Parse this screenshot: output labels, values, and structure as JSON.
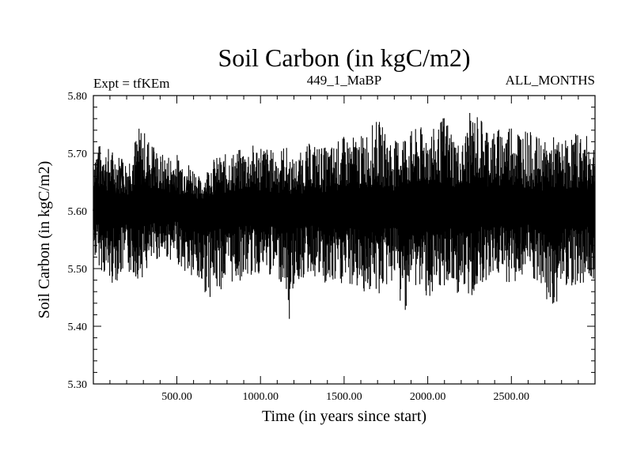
{
  "chart_data": {
    "type": "line",
    "title": "Soil Carbon (in kgC/m2)",
    "subtitle_left": "Expt = tfKEm",
    "subtitle_center": "449_1_MaBP",
    "subtitle_right": "ALL_MONTHS",
    "xlabel": "Time (in years since start)",
    "ylabel": "Soil Carbon (in kgC/m2)",
    "xlim": [
      1,
      3000
    ],
    "ylim": [
      5.3,
      5.8
    ],
    "x_ticks": [
      500,
      1000,
      1500,
      2000,
      2500
    ],
    "x_tick_labels": [
      "500.00",
      "1000.00",
      "1500.00",
      "2000.00",
      "2500.00"
    ],
    "y_ticks": [
      5.3,
      5.4,
      5.5,
      5.6,
      5.7,
      5.8
    ],
    "y_tick_labels": [
      "5.30",
      "5.40",
      "5.50",
      "5.60",
      "5.70",
      "5.80"
    ],
    "grid": false,
    "series": [
      {
        "color": "#000000",
        "x_step": 10,
        "x_start": 1,
        "values": [
          5.6,
          5.65,
          5.58,
          5.7,
          5.55,
          5.62,
          5.68,
          5.57,
          5.63,
          5.6,
          5.54,
          5.66,
          5.61,
          5.59,
          5.64,
          5.56,
          5.62,
          5.69,
          5.58,
          5.61,
          5.63,
          5.57,
          5.66,
          5.6,
          5.55,
          5.64,
          5.59,
          5.62,
          5.68,
          5.56,
          5.61,
          5.65,
          5.53,
          5.6,
          5.63,
          5.58,
          5.71,
          5.59,
          5.62,
          5.56,
          5.64,
          5.6,
          5.57,
          5.66,
          5.61,
          5.58,
          5.63,
          5.55,
          5.6,
          5.65,
          5.59,
          5.62,
          5.57,
          5.64,
          5.52,
          5.6,
          5.66,
          5.58,
          5.62,
          5.6,
          5.57,
          5.63,
          5.59,
          5.61,
          5.55,
          5.62,
          5.58,
          5.64,
          5.6,
          5.56,
          5.63,
          5.59,
          5.61,
          5.57,
          5.65,
          5.6,
          5.62,
          5.58,
          5.64,
          5.61,
          5.59,
          5.63,
          5.57,
          5.66,
          5.6,
          5.62,
          5.58,
          5.64,
          5.61,
          5.59,
          5.65,
          5.6,
          5.62,
          5.57,
          5.63,
          5.61,
          5.59,
          5.64,
          5.6,
          5.62,
          5.58,
          5.66,
          5.6,
          5.63,
          5.57,
          5.64,
          5.61,
          5.59,
          5.65,
          5.6,
          5.62,
          5.58,
          5.67,
          5.61,
          5.59,
          5.63,
          5.56,
          5.62,
          5.6,
          5.58,
          5.64,
          5.61,
          5.59,
          5.63,
          5.57,
          5.62,
          5.6,
          5.65,
          5.59,
          5.61,
          5.58,
          5.63,
          5.6,
          5.62,
          5.57,
          5.64,
          5.61,
          5.59,
          5.63,
          5.6,
          5.62,
          5.58,
          5.65,
          5.6,
          5.61,
          5.59,
          5.63,
          5.57,
          5.62,
          5.6,
          5.64,
          5.58,
          5.61,
          5.6,
          5.63,
          5.57,
          5.62,
          5.59,
          5.65,
          5.6,
          5.62,
          5.58,
          5.64,
          5.61,
          5.59,
          5.63,
          5.6,
          5.62,
          5.57,
          5.66,
          5.61,
          5.59,
          5.63,
          5.6,
          5.62,
          5.58,
          5.65,
          5.6,
          5.61,
          5.59,
          5.63,
          5.58,
          5.62,
          5.6,
          5.65,
          5.59,
          5.61,
          5.57,
          5.64,
          5.6,
          5.62,
          5.59,
          5.63,
          5.6,
          5.61,
          5.58,
          5.64,
          5.6,
          5.62,
          5.59,
          5.63,
          5.61,
          5.6,
          5.58,
          5.64,
          5.61,
          5.59,
          5.65,
          5.6,
          5.62,
          5.58,
          5.63,
          5.6,
          5.61,
          5.59,
          5.64,
          5.6,
          5.62,
          5.57,
          5.65,
          5.61,
          5.59,
          5.63,
          5.6,
          5.62,
          5.58,
          5.64,
          5.61,
          5.59,
          5.63,
          5.6,
          5.62,
          5.58,
          5.65,
          5.6,
          5.61,
          5.59,
          5.63,
          5.57,
          5.62,
          5.6,
          5.64,
          5.59,
          5.61,
          5.58,
          5.63,
          5.6,
          5.62,
          5.57,
          5.65,
          5.61,
          5.59,
          5.64,
          5.6,
          5.62,
          5.58,
          5.63,
          5.61,
          5.59,
          5.65,
          5.6,
          5.62,
          5.58,
          5.64,
          5.61,
          5.59,
          5.63,
          5.6,
          5.62,
          5.57,
          5.66,
          5.61,
          5.59,
          5.63,
          5.6,
          5.62,
          5.58,
          5.64,
          5.61,
          5.59,
          5.63,
          5.6,
          5.62,
          5.58,
          5.65,
          5.6,
          5.61,
          5.59,
          5.64,
          5.6,
          5.62,
          5.58,
          5.63,
          5.61,
          5.59,
          5.65,
          5.6,
          5.62,
          5.57,
          5.64,
          5.61,
          5.59,
          5.63,
          5.6,
          5.62,
          5.58,
          5.64,
          5.61,
          5.59,
          5.63
        ]
      }
    ],
    "envelope": {
      "x": [
        1,
        100,
        200,
        280,
        400,
        500,
        600,
        650,
        700,
        800,
        900,
        1000,
        1100,
        1150,
        1165,
        1200,
        1300,
        1400,
        1500,
        1600,
        1700,
        1800,
        1850,
        1900,
        2000,
        2050,
        2100,
        2200,
        2250,
        2300,
        2400,
        2500,
        2600,
        2700,
        2750,
        2800,
        2900,
        3000
      ],
      "max": [
        5.72,
        5.71,
        5.69,
        5.75,
        5.7,
        5.7,
        5.68,
        5.65,
        5.69,
        5.7,
        5.71,
        5.72,
        5.7,
        5.72,
        5.7,
        5.69,
        5.72,
        5.71,
        5.73,
        5.73,
        5.76,
        5.72,
        5.74,
        5.74,
        5.75,
        5.74,
        5.77,
        5.71,
        5.77,
        5.77,
        5.74,
        5.76,
        5.74,
        5.72,
        5.73,
        5.72,
        5.74,
        5.72
      ],
      "min": [
        5.52,
        5.47,
        5.49,
        5.48,
        5.52,
        5.51,
        5.47,
        5.46,
        5.45,
        5.47,
        5.48,
        5.49,
        5.48,
        5.47,
        5.39,
        5.47,
        5.49,
        5.46,
        5.47,
        5.46,
        5.45,
        5.48,
        5.41,
        5.47,
        5.45,
        5.42,
        5.47,
        5.45,
        5.44,
        5.47,
        5.49,
        5.47,
        5.49,
        5.44,
        5.42,
        5.47,
        5.47,
        5.48
      ]
    }
  }
}
